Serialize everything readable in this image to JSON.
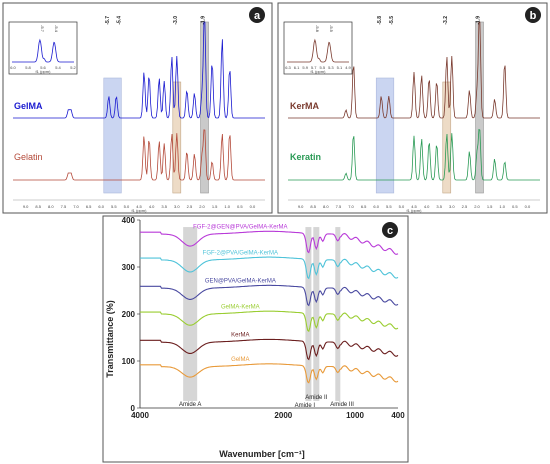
{
  "panels": {
    "a": {
      "label": "a",
      "series": [
        {
          "name": "GelMA",
          "color": "#1a1ad0"
        },
        {
          "name": "Gelatin",
          "color": "#b44a3a"
        }
      ],
      "peak_labels": [
        "-5.7",
        "-5.4",
        "-3.0",
        "-1.9"
      ],
      "inset": {
        "xlabel": "f1 (ppm)",
        "ticks": [
          "6.0",
          "5.8",
          "5.6",
          "5.4",
          "5.2"
        ],
        "peak_labels": [
          "-5.7",
          "-5.4"
        ]
      },
      "axis_ticks": [
        "9.0",
        "8.5",
        "8.0",
        "7.5",
        "7.0",
        "6.5",
        "6.0",
        "5.5",
        "5.0",
        "4.5",
        "4.0",
        "3.5",
        "3.0",
        "2.5",
        "2.0",
        "1.5",
        "1.0",
        "0.5",
        "0.0"
      ],
      "axis_label": "f1 (ppm)"
    },
    "b": {
      "label": "b",
      "series": [
        {
          "name": "KerMA",
          "color": "#7a3a2e"
        },
        {
          "name": "Keratin",
          "color": "#2a9a55"
        }
      ],
      "peak_labels": [
        "-5.8",
        "-5.5",
        "-3.2",
        "-1.9"
      ],
      "inset": {
        "xlabel": "f1 (ppm)",
        "ticks": [
          "6.3",
          "6.1",
          "5.9",
          "5.7",
          "5.5",
          "5.3",
          "5.1",
          "4.9"
        ],
        "peak_labels": [
          "-5.8",
          "-5.5"
        ]
      },
      "axis_ticks": [
        "9.0",
        "8.5",
        "8.0",
        "7.5",
        "7.0",
        "6.5",
        "6.0",
        "5.5",
        "5.0",
        "4.5",
        "4.0",
        "3.5",
        "3.0",
        "2.5",
        "2.0",
        "1.5",
        "1.0",
        "0.5",
        "0.0"
      ],
      "axis_label": "f1 (ppm)"
    },
    "c": {
      "label": "c",
      "ylabel": "Transmittance (%)",
      "xlabel": "Wavenumber [cm⁻¹]",
      "amide_labels": {
        "a": "Amide A",
        "i": "Amide I",
        "ii": "Amide II",
        "iii": "Amide III"
      }
    }
  },
  "chart_data": [
    {
      "type": "line",
      "title": "",
      "panel": "a",
      "xlabel": "f1 (ppm)",
      "xlim": [
        9.5,
        -0.5
      ],
      "series": [
        {
          "name": "GelMA",
          "peaks_ppm": [
            7.3,
            7.2,
            5.7,
            5.4,
            4.3,
            4.1,
            3.7,
            3.5,
            3.2,
            3.0,
            2.6,
            2.3,
            2.0,
            1.9,
            1.6,
            1.2,
            0.9
          ]
        },
        {
          "name": "Gelatin",
          "peaks_ppm": [
            7.3,
            7.2,
            4.3,
            4.1,
            3.7,
            3.5,
            3.2,
            3.0,
            2.6,
            2.3,
            2.0,
            1.9,
            1.6,
            1.2,
            0.9
          ]
        }
      ],
      "highlight_ppm": [
        5.7,
        5.4,
        3.0,
        1.9
      ]
    },
    {
      "type": "line",
      "title": "",
      "panel": "b",
      "xlabel": "f1 (ppm)",
      "xlim": [
        9.5,
        -0.5
      ],
      "series": [
        {
          "name": "KerMA",
          "peaks_ppm": [
            7.2,
            6.9,
            5.8,
            5.5,
            4.5,
            4.2,
            3.9,
            3.6,
            3.2,
            3.0,
            2.3,
            2.0,
            1.9,
            1.3,
            0.9
          ]
        },
        {
          "name": "Keratin",
          "peaks_ppm": [
            7.2,
            6.9,
            4.5,
            4.2,
            3.9,
            3.6,
            3.2,
            3.0,
            2.3,
            2.0,
            1.9,
            1.3,
            0.9
          ]
        }
      ],
      "highlight_ppm": [
        5.8,
        5.5,
        3.2,
        1.9
      ]
    },
    {
      "type": "line",
      "title": "",
      "panel": "c",
      "xlabel": "Wavenumber [cm⁻¹]",
      "ylabel": "Transmittance (%)",
      "xlim": [
        4000,
        400
      ],
      "ylim": [
        0,
        400
      ],
      "xticks": [
        4000,
        2000,
        1000,
        400
      ],
      "yticks": [
        0,
        100,
        200,
        300,
        400
      ],
      "series": [
        {
          "name": "FGF-2@GEN@PVA/GelMA-KerMA",
          "color": "#b83ad8",
          "baseline": 370,
          "dip": 32,
          "tail": 325
        },
        {
          "name": "FGF-2@PVA/GelMA-KerMA",
          "color": "#4fc3d9",
          "baseline": 315,
          "dip": 32,
          "tail": 275
        },
        {
          "name": "GEN@PVA/GelMA-KerMA",
          "color": "#4a4aa0",
          "baseline": 255,
          "dip": 30,
          "tail": 218
        },
        {
          "name": "GelMA-KerMA",
          "color": "#9acd32",
          "baseline": 200,
          "dip": 30,
          "tail": 168
        },
        {
          "name": "KerMA",
          "color": "#6b1f1f",
          "baseline": 140,
          "dip": 30,
          "tail": 110
        },
        {
          "name": "GelMA",
          "color": "#e89a3a",
          "baseline": 88,
          "dip": 28,
          "tail": 55
        }
      ],
      "bands_cm": [
        3300,
        1650,
        1540,
        1240
      ]
    }
  ]
}
